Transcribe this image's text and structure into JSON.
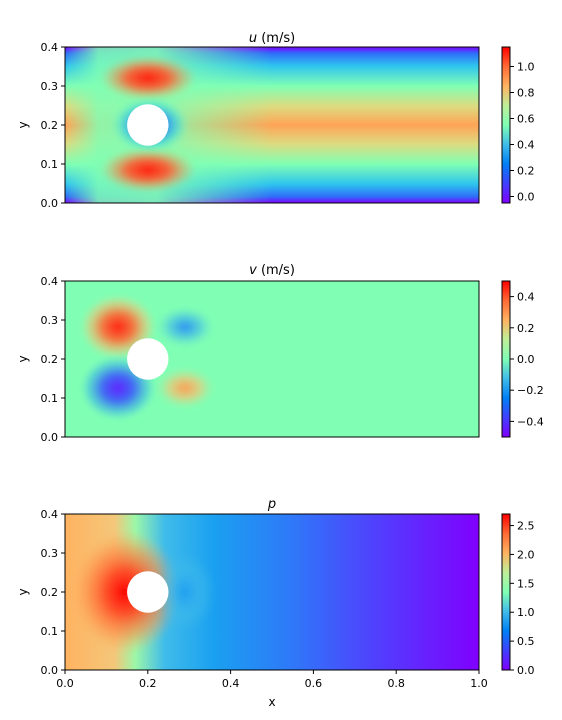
{
  "chart_data": [
    {
      "type": "heatmap",
      "title_var": "u",
      "title_unit": "(m/s)",
      "xlabel": "",
      "ylabel": "y",
      "xlim": [
        0.0,
        1.0
      ],
      "ylim": [
        0.0,
        0.4
      ],
      "xticks": [],
      "yticks": [
        "0.0",
        "0.1",
        "0.2",
        "0.3",
        "0.4"
      ],
      "colormap": "rainbow",
      "obstacle": {
        "shape": "circle",
        "cx": 0.2,
        "cy": 0.2,
        "r": 0.05,
        "fill": "#ffffff"
      },
      "colorbar": {
        "range": [
          -0.05,
          1.15
        ],
        "ticks": [
          "0.0",
          "0.2",
          "0.4",
          "0.6",
          "0.8",
          "1.0"
        ],
        "tick_values": [
          0.0,
          0.2,
          0.4,
          0.6,
          0.8,
          1.0
        ]
      }
    },
    {
      "type": "heatmap",
      "title_var": "v",
      "title_unit": "(m/s)",
      "xlabel": "",
      "ylabel": "y",
      "xlim": [
        0.0,
        1.0
      ],
      "ylim": [
        0.0,
        0.4
      ],
      "xticks": [],
      "yticks": [
        "0.0",
        "0.1",
        "0.2",
        "0.3",
        "0.4"
      ],
      "colormap": "rainbow",
      "obstacle": {
        "shape": "circle",
        "cx": 0.2,
        "cy": 0.2,
        "r": 0.05,
        "fill": "#ffffff"
      },
      "colorbar": {
        "range": [
          -0.5,
          0.5
        ],
        "ticks": [
          "−0.4",
          "−0.2",
          "0.0",
          "0.2",
          "0.4"
        ],
        "tick_values": [
          -0.4,
          -0.2,
          0.0,
          0.2,
          0.4
        ]
      }
    },
    {
      "type": "heatmap",
      "title_var": "p",
      "title_unit": "",
      "xlabel": "x",
      "ylabel": "y",
      "xlim": [
        0.0,
        1.0
      ],
      "ylim": [
        0.0,
        0.4
      ],
      "xticks": [
        "0.0",
        "0.2",
        "0.4",
        "0.6",
        "0.8",
        "1.0"
      ],
      "yticks": [
        "0.0",
        "0.1",
        "0.2",
        "0.3",
        "0.4"
      ],
      "colormap": "rainbow",
      "obstacle": {
        "shape": "circle",
        "cx": 0.2,
        "cy": 0.2,
        "r": 0.05,
        "fill": "#ffffff"
      },
      "colorbar": {
        "range": [
          0.0,
          2.7
        ],
        "ticks": [
          "0.0",
          "0.5",
          "1.0",
          "1.5",
          "2.0",
          "2.5"
        ],
        "tick_values": [
          0.0,
          0.5,
          1.0,
          1.5,
          2.0,
          2.5
        ]
      }
    }
  ]
}
